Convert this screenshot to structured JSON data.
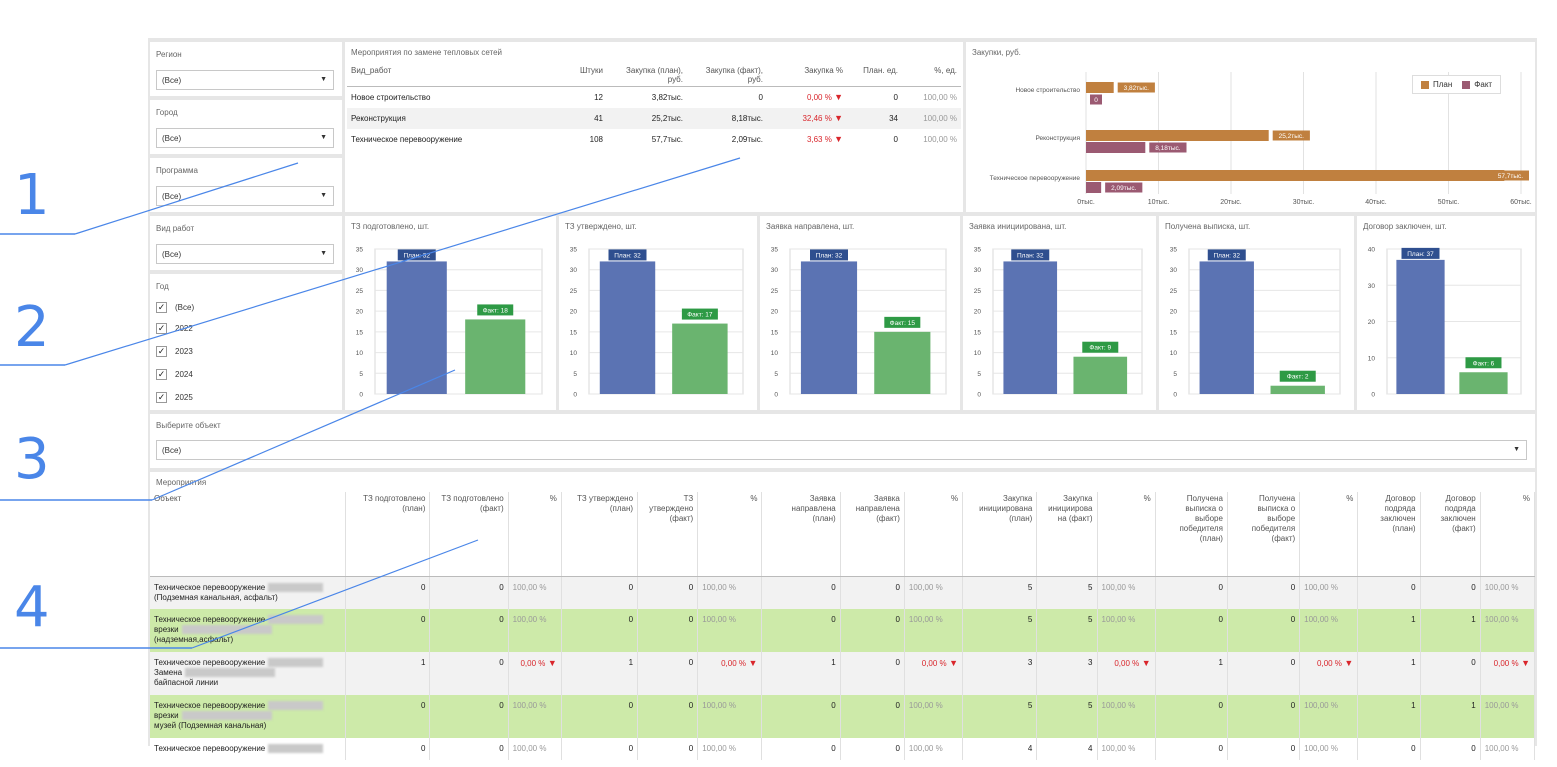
{
  "filters": {
    "region": {
      "label": "Регион",
      "value": "(Все)"
    },
    "city": {
      "label": "Город",
      "value": "(Все)"
    },
    "program": {
      "label": "Программа",
      "value": "(Все)"
    },
    "work_type": {
      "label": "Вид работ",
      "value": "(Все)"
    },
    "year": {
      "label": "Год",
      "items": [
        {
          "label": "(Все)",
          "checked": true
        },
        {
          "label": "2022",
          "checked": true
        },
        {
          "label": "2023",
          "checked": true
        },
        {
          "label": "2024",
          "checked": true
        },
        {
          "label": "2025",
          "checked": true
        }
      ]
    }
  },
  "summary": {
    "title": "Мероприятия по замене тепловых сетей",
    "headers": [
      "Вид_работ",
      "Штуки",
      "Закупка (план), руб.",
      "Закупка (факт), руб.",
      "Закупка %",
      "План. ед.",
      "%, ед."
    ],
    "rows": [
      {
        "name": "Новое строительство",
        "count": "12",
        "plan": "3,82тыс.",
        "fact": "0",
        "pct": "0,00 %",
        "units": "0",
        "upct": "100,00 %"
      },
      {
        "name": "Реконструкция",
        "count": "41",
        "plan": "25,2тыс.",
        "fact": "8,18тыс.",
        "pct": "32,46 %",
        "units": "34",
        "upct": "100,00 %"
      },
      {
        "name": "Техническое перевооружение",
        "count": "108",
        "plan": "57,7тыс.",
        "fact": "2,09тыс.",
        "pct": "3,63 %",
        "units": "0",
        "upct": "100,00 %"
      }
    ]
  },
  "purchases": {
    "title": "Закупки, руб.",
    "legend": {
      "plan": "План",
      "fact": "Факт"
    },
    "colors": {
      "plan": "#c0803f",
      "fact": "#9b5a72"
    }
  },
  "bar_charts": [
    {
      "title": "ТЗ подготовлено, шт.",
      "ymax": 35,
      "ticks": [
        "0",
        "5",
        "10",
        "15",
        "20",
        "25",
        "30",
        "35"
      ],
      "plan": 32,
      "fact": 18,
      "plan_label": "План: 32",
      "fact_label": "Факт: 18"
    },
    {
      "title": "ТЗ утверждено, шт.",
      "ymax": 35,
      "ticks": [
        "0",
        "5",
        "10",
        "15",
        "20",
        "25",
        "30",
        "35"
      ],
      "plan": 32,
      "fact": 17,
      "plan_label": "План: 32",
      "fact_label": "Факт: 17"
    },
    {
      "title": "Заявка направлена, шт.",
      "ymax": 35,
      "ticks": [
        "0",
        "5",
        "10",
        "15",
        "20",
        "25",
        "30",
        "35"
      ],
      "plan": 32,
      "fact": 15,
      "plan_label": "План: 32",
      "fact_label": "Факт: 15"
    },
    {
      "title": "Заявка инициирована, шт.",
      "ymax": 35,
      "ticks": [
        "0",
        "5",
        "10",
        "15",
        "20",
        "25",
        "30",
        "35"
      ],
      "plan": 32,
      "fact": 9,
      "plan_label": "План: 32",
      "fact_label": "Факт: 9"
    },
    {
      "title": "Получена выписка, шт.",
      "ymax": 35,
      "ticks": [
        "0",
        "5",
        "10",
        "15",
        "20",
        "25",
        "30",
        "35"
      ],
      "plan": 32,
      "fact": 2,
      "plan_label": "План: 32",
      "fact_label": "Факт: 2"
    },
    {
      "title": "Договор заключен, шт.",
      "ymax": 40,
      "ticks": [
        "0",
        "10",
        "20",
        "30",
        "40"
      ],
      "plan": 37,
      "fact": 6,
      "plan_label": "План: 37",
      "fact_label": "Факт: 6"
    }
  ],
  "bar_colors": {
    "plan": "#5b73b3",
    "fact": "#6ab46f"
  },
  "object_select": {
    "label": "Выберите объект",
    "value": "(Все)"
  },
  "events": {
    "title": "Мероприятия",
    "headers": [
      "Объект",
      "ТЗ подготовлено (план)",
      "ТЗ подготовлено (факт)",
      "%",
      "ТЗ утверждено (план)",
      "ТЗ утверждено (факт)",
      "%",
      "Заявка направлена (план)",
      "Заявка направлена (факт)",
      "%",
      "Закупка инициирована (план)",
      "Закупка инициирова на (факт)",
      "%",
      "Получена выписка о выборе победителя (план)",
      "Получена выписка о выборе победителя (факт)",
      "%",
      "Договор подряда заключен (план)",
      "Договор подряда заключен (факт)",
      "%"
    ],
    "rows": [
      {
        "style": "gray",
        "lines": [
          "Техническое перевооружение",
          "(Подземная канальная, асфальт)"
        ],
        "values": [
          "0",
          "0",
          "100,00 %",
          "0",
          "0",
          "100,00 %",
          "0",
          "0",
          "100,00 %",
          "5",
          "5",
          "100,00 %",
          "0",
          "0",
          "100,00 %",
          "0",
          "0",
          "100,00 %"
        ]
      },
      {
        "style": "green",
        "lines": [
          "Техническое перевооружение",
          "врезки",
          "(надземная,асфальт)"
        ],
        "values": [
          "0",
          "0",
          "100,00 %",
          "0",
          "0",
          "100,00 %",
          "0",
          "0",
          "100,00 %",
          "5",
          "5",
          "100,00 %",
          "0",
          "0",
          "100,00 %",
          "1",
          "1",
          "100,00 %"
        ]
      },
      {
        "style": "gray",
        "lines": [
          "Техническое перевооружение",
          "Замена",
          "байпасной линии"
        ],
        "values": [
          "1",
          "0",
          "0,00 %",
          "1",
          "0",
          "0,00 %",
          "1",
          "0",
          "0,00 %",
          "3",
          "3",
          "0,00 %",
          "1",
          "0",
          "0,00 %",
          "1",
          "0",
          "0,00 %"
        ]
      },
      {
        "style": "green",
        "lines": [
          "Техническое перевооружение",
          "врезки",
          "музей (Подземная канальная)"
        ],
        "values": [
          "0",
          "0",
          "100,00 %",
          "0",
          "0",
          "100,00 %",
          "0",
          "0",
          "100,00 %",
          "5",
          "5",
          "100,00 %",
          "0",
          "0",
          "100,00 %",
          "1",
          "1",
          "100,00 %"
        ]
      },
      {
        "style": "white",
        "lines": [
          "Техническое перевооружение"
        ],
        "values": [
          "0",
          "0",
          "100,00 %",
          "0",
          "0",
          "100,00 %",
          "0",
          "0",
          "100,00 %",
          "4",
          "4",
          "100,00 %",
          "0",
          "0",
          "100,00 %",
          "0",
          "0",
          "100,00 %"
        ]
      }
    ]
  },
  "annotations": [
    "1",
    "2",
    "3",
    "4"
  ],
  "chart_data": {
    "type": "bar",
    "title": "Закупки, руб.",
    "orientation": "horizontal",
    "categories": [
      "Новое строительство",
      "Реконструкция",
      "Техническое перевооружение"
    ],
    "series": [
      {
        "name": "План",
        "values": [
          3.82,
          25.2,
          57.7
        ],
        "labels": [
          "3,82тыс.",
          "25,2тыс.",
          "57,7тыс."
        ]
      },
      {
        "name": "Факт",
        "values": [
          0,
          8.18,
          2.09
        ],
        "labels": [
          "0",
          "8,18тыс.",
          "2,09тыс."
        ]
      }
    ],
    "xlim": [
      0,
      60
    ],
    "ticks": [
      "0тыс.",
      "10тыс.",
      "20тыс.",
      "30тыс.",
      "40тыс.",
      "50тыс.",
      "60тыс."
    ],
    "legend": "top-right",
    "grid": true
  }
}
